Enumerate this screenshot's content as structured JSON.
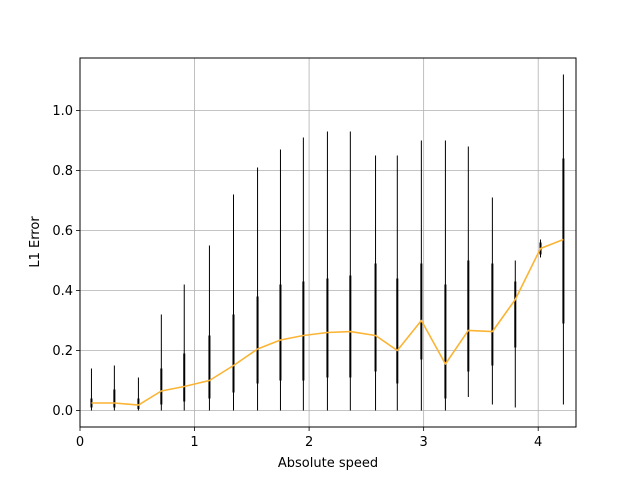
{
  "chart_data": {
    "type": "line",
    "title": "",
    "xlabel": "Absolute speed",
    "ylabel": "L1 Error",
    "xlim": [
      0,
      4.33
    ],
    "ylim": [
      -0.055,
      1.175
    ],
    "xticks": [
      0,
      1,
      2,
      3,
      4
    ],
    "xtick_labels": [
      "0",
      "1",
      "2",
      "3",
      "4"
    ],
    "yticks": [
      0.0,
      0.2,
      0.4,
      0.6,
      0.8,
      1.0
    ],
    "ytick_labels": [
      "0.0",
      "0.2",
      "0.4",
      "0.6",
      "0.8",
      "1.0"
    ],
    "grid": true,
    "line_color": "#fbb434",
    "errorbar_color": "#000000",
    "series": [
      {
        "x": [
          0.1,
          0.3,
          0.51,
          0.71,
          0.91,
          1.13,
          1.34,
          1.55,
          1.75,
          1.95,
          2.16,
          2.36,
          2.58,
          2.77,
          2.98,
          3.19,
          3.39,
          3.6,
          3.8,
          4.02,
          4.22
        ],
        "y": [
          0.025,
          0.025,
          0.018,
          0.065,
          0.08,
          0.1,
          0.15,
          0.205,
          0.235,
          0.25,
          0.26,
          0.263,
          0.25,
          0.2,
          0.3,
          0.155,
          0.267,
          0.263,
          0.37,
          0.54,
          0.57
        ],
        "whisker_low": [
          0.0,
          0.0,
          0.0,
          0.0,
          0.0,
          0.0,
          0.0,
          0.0,
          0.0,
          0.0,
          0.0,
          0.0,
          0.0,
          0.0,
          0.0,
          0.0,
          0.045,
          0.02,
          0.01,
          0.51,
          0.02
        ],
        "whisker_high": [
          0.14,
          0.15,
          0.11,
          0.32,
          0.42,
          0.55,
          0.72,
          0.81,
          0.87,
          0.91,
          0.93,
          0.93,
          0.85,
          0.85,
          0.9,
          0.9,
          0.88,
          0.71,
          0.5,
          0.57,
          1.12
        ],
        "box_low": [
          0.01,
          0.01,
          0.005,
          0.02,
          0.03,
          0.04,
          0.06,
          0.09,
          0.1,
          0.1,
          0.11,
          0.11,
          0.13,
          0.09,
          0.17,
          0.04,
          0.13,
          0.15,
          0.21,
          0.52,
          0.29
        ],
        "box_high": [
          0.04,
          0.07,
          0.04,
          0.14,
          0.19,
          0.25,
          0.32,
          0.38,
          0.42,
          0.43,
          0.44,
          0.45,
          0.49,
          0.44,
          0.49,
          0.42,
          0.5,
          0.49,
          0.43,
          0.56,
          0.84
        ]
      }
    ]
  }
}
